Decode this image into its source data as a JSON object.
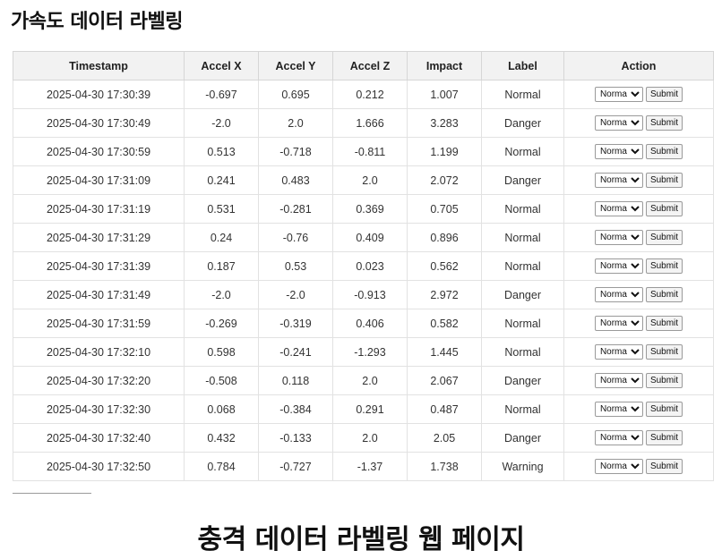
{
  "page": {
    "title": "가속도 데이터 라벨링",
    "caption": "충격 데이터 라벨링 웹 페이지"
  },
  "table": {
    "columns": [
      "Timestamp",
      "Accel X",
      "Accel Y",
      "Accel Z",
      "Impact",
      "Label",
      "Action"
    ],
    "rows": [
      {
        "timestamp": "2025-04-30 17:30:39",
        "accel_x": "-0.697",
        "accel_y": "0.695",
        "accel_z": "0.212",
        "impact": "1.007",
        "label": "Normal",
        "select_value": "Normal"
      },
      {
        "timestamp": "2025-04-30 17:30:49",
        "accel_x": "-2.0",
        "accel_y": "2.0",
        "accel_z": "1.666",
        "impact": "3.283",
        "label": "Danger",
        "select_value": "Normal"
      },
      {
        "timestamp": "2025-04-30 17:30:59",
        "accel_x": "0.513",
        "accel_y": "-0.718",
        "accel_z": "-0.811",
        "impact": "1.199",
        "label": "Normal",
        "select_value": "Normal"
      },
      {
        "timestamp": "2025-04-30 17:31:09",
        "accel_x": "0.241",
        "accel_y": "0.483",
        "accel_z": "2.0",
        "impact": "2.072",
        "label": "Danger",
        "select_value": "Normal"
      },
      {
        "timestamp": "2025-04-30 17:31:19",
        "accel_x": "0.531",
        "accel_y": "-0.281",
        "accel_z": "0.369",
        "impact": "0.705",
        "label": "Normal",
        "select_value": "Normal"
      },
      {
        "timestamp": "2025-04-30 17:31:29",
        "accel_x": "0.24",
        "accel_y": "-0.76",
        "accel_z": "0.409",
        "impact": "0.896",
        "label": "Normal",
        "select_value": "Normal"
      },
      {
        "timestamp": "2025-04-30 17:31:39",
        "accel_x": "0.187",
        "accel_y": "0.53",
        "accel_z": "0.023",
        "impact": "0.562",
        "label": "Normal",
        "select_value": "Normal"
      },
      {
        "timestamp": "2025-04-30 17:31:49",
        "accel_x": "-2.0",
        "accel_y": "-2.0",
        "accel_z": "-0.913",
        "impact": "2.972",
        "label": "Danger",
        "select_value": "Normal"
      },
      {
        "timestamp": "2025-04-30 17:31:59",
        "accel_x": "-0.269",
        "accel_y": "-0.319",
        "accel_z": "0.406",
        "impact": "0.582",
        "label": "Normal",
        "select_value": "Normal"
      },
      {
        "timestamp": "2025-04-30 17:32:10",
        "accel_x": "0.598",
        "accel_y": "-0.241",
        "accel_z": "-1.293",
        "impact": "1.445",
        "label": "Normal",
        "select_value": "Normal"
      },
      {
        "timestamp": "2025-04-30 17:32:20",
        "accel_x": "-0.508",
        "accel_y": "0.118",
        "accel_z": "2.0",
        "impact": "2.067",
        "label": "Danger",
        "select_value": "Normal"
      },
      {
        "timestamp": "2025-04-30 17:32:30",
        "accel_x": "0.068",
        "accel_y": "-0.384",
        "accel_z": "0.291",
        "impact": "0.487",
        "label": "Normal",
        "select_value": "Normal"
      },
      {
        "timestamp": "2025-04-30 17:32:40",
        "accel_x": "0.432",
        "accel_y": "-0.133",
        "accel_z": "2.0",
        "impact": "2.05",
        "label": "Danger",
        "select_value": "Normal"
      },
      {
        "timestamp": "2025-04-30 17:32:50",
        "accel_x": "0.784",
        "accel_y": "-0.727",
        "accel_z": "-1.37",
        "impact": "1.738",
        "label": "Warning",
        "select_value": "Normal"
      }
    ],
    "submit_label": "Submit"
  }
}
